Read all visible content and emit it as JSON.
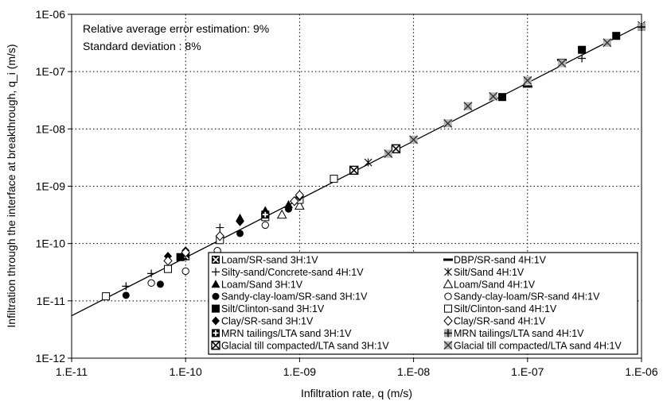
{
  "chart_data": {
    "type": "scatter",
    "xscale": "log",
    "yscale": "log",
    "xlim": [
      1e-11,
      1e-06
    ],
    "ylim": [
      1e-12,
      1e-06
    ],
    "x_ticks": [
      "1.E-11",
      "1.E-10",
      "1.E-09",
      "1.E-08",
      "1.E-07",
      "1.E-06"
    ],
    "y_ticks": [
      "1E-12",
      "1E-11",
      "1E-10",
      "1E-09",
      "1E-08",
      "1E-07",
      "1E-06"
    ],
    "xlabel": "Infiltration rate, q  (m/s)",
    "ylabel": "Infiltration through the interface at breakthrough, q_i (m/s)",
    "grid": "dotted",
    "legend_position": "bottom-right",
    "annotations": [
      "Relative average error estimation: 9%",
      "Standard deviation : 8%"
    ],
    "fit_line": {
      "x": [
        1e-11,
        1e-06
      ],
      "y": [
        5.5e-12,
        6.6e-07
      ]
    },
    "series": [
      {
        "name": "Loam/SR-sand  3H:1V",
        "marker": "boxx",
        "x": [
          1e-10
        ],
        "y": [
          6e-11
        ]
      },
      {
        "name": "DBP/SR-sand  4H:1V",
        "marker": "dash",
        "x": [
          1e-07,
          2e-07
        ],
        "y": [
          5.5e-08,
          1.6e-07
        ]
      },
      {
        "name": "Silty-sand/Concrete-sand  4H:1V",
        "marker": "plus",
        "x": [
          3e-11,
          5e-11,
          2e-10,
          3e-07
        ],
        "y": [
          1.8e-11,
          3e-11,
          1.9e-10,
          1.7e-07
        ]
      },
      {
        "name": "Silt/Sand  4H:1V",
        "marker": "asterisk",
        "x": [
          4e-09,
          1e-06
        ],
        "y": [
          2.6e-09,
          6.5e-07
        ]
      },
      {
        "name": "Loam/Sand  3H:1V",
        "marker": "tri_filled",
        "x": [
          3e-10,
          5e-10,
          8e-10
        ],
        "y": [
          2.8e-10,
          3.8e-10,
          4.8e-10
        ]
      },
      {
        "name": "Loam/Sand  4H:1V",
        "marker": "tri_open",
        "x": [
          7e-10,
          1e-09
        ],
        "y": [
          3.2e-10,
          4.6e-10
        ]
      },
      {
        "name": "Sandy-clay-loam/SR-sand  3H:1V",
        "marker": "circle_filled",
        "x": [
          3e-11,
          6e-11,
          3e-10,
          8e-10
        ],
        "y": [
          1.25e-11,
          1.95e-11,
          1.5e-10,
          4e-10
        ]
      },
      {
        "name": "Sandy-clay-loam/SR-sand  4H:1V",
        "marker": "circle_open",
        "x": [
          5e-11,
          1e-10,
          1.9e-10,
          5e-10
        ],
        "y": [
          2.05e-11,
          3.3e-11,
          7.5e-11,
          2.1e-10
        ]
      },
      {
        "name": "Silt/Clinton-sand  3H:1V",
        "marker": "square_filled",
        "x": [
          9e-11,
          3e-09,
          7e-09,
          6e-08,
          3e-07,
          6e-07
        ],
        "y": [
          5.8e-11,
          1.9e-09,
          4.5e-09,
          3.6e-08,
          2.4e-07,
          4.2e-07
        ]
      },
      {
        "name": "Silt/Clinton-sand  4H:1V",
        "marker": "square_open",
        "x": [
          2e-11,
          7e-11,
          2e-10,
          5e-10,
          1e-09,
          2e-09
        ],
        "y": [
          1.2e-11,
          3.6e-11,
          1.15e-10,
          2.9e-10,
          5.8e-10,
          1.35e-09
        ]
      },
      {
        "name": "Clay/SR-sand  3H:1V",
        "marker": "diamond_filled",
        "x": [
          7e-11,
          1e-10,
          3e-10,
          5e-10,
          1e-09
        ],
        "y": [
          6e-11,
          7.5e-11,
          2.4e-10,
          3.4e-10,
          6.5e-10
        ]
      },
      {
        "name": "Clay/SR-sand  4H:1V",
        "marker": "diamond_open",
        "x": [
          7e-11,
          1e-10,
          2e-10,
          9e-10,
          1e-09
        ],
        "y": [
          5e-11,
          7e-11,
          1.35e-10,
          5.5e-10,
          7e-10
        ]
      },
      {
        "name": "MRN tailings/LTA sand  3H:1V",
        "marker": "plusbox_filled",
        "x": [
          5e-10
        ],
        "y": [
          3.2e-10
        ]
      },
      {
        "name": "MRN tailings/LTA sand  4H:1V",
        "marker": "plusbox_gray",
        "x": [
          1e-06
        ],
        "y": [
          6e-07
        ]
      },
      {
        "name": "Glacial till compacted/LTA sand  3H:1V",
        "marker": "boxx_black",
        "x": [
          3e-09,
          7e-09
        ],
        "y": [
          1.9e-09,
          4.5e-09
        ]
      },
      {
        "name": "Glacial till compacted/LTA sand  4H:1V",
        "marker": "x_gray",
        "x": [
          6e-09,
          1e-08,
          2e-08,
          3e-08,
          5e-08,
          1e-07,
          2e-07,
          5e-07
        ],
        "y": [
          3.7e-09,
          6.5e-09,
          1.25e-08,
          2.5e-08,
          3.7e-08,
          7e-08,
          1.4e-07,
          3.2e-07
        ]
      }
    ]
  }
}
